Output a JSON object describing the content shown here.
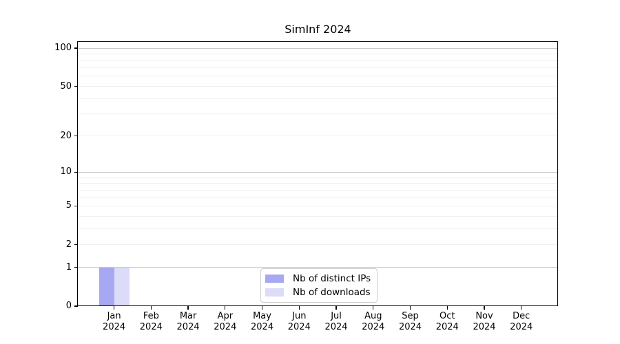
{
  "chart_data": {
    "type": "bar",
    "title": "SimInf 2024",
    "categories": [
      "Jan",
      "Feb",
      "Mar",
      "Apr",
      "May",
      "Jun",
      "Jul",
      "Aug",
      "Sep",
      "Oct",
      "Nov",
      "Dec"
    ],
    "category_year": "2024",
    "series": [
      {
        "name": "Nb of distinct IPs",
        "color": "#a8a8f2",
        "values": [
          1,
          0,
          0,
          0,
          0,
          0,
          0,
          0,
          0,
          0,
          0,
          0
        ]
      },
      {
        "name": "Nb of downloads",
        "color": "#dcdcf8",
        "values": [
          1,
          0,
          0,
          0,
          0,
          0,
          0,
          0,
          0,
          0,
          0,
          0
        ]
      }
    ],
    "y_axis": {
      "scale": "log1p",
      "tick_labels": [
        "0",
        "1",
        "2",
        "5",
        "10",
        "20",
        "50",
        "100"
      ],
      "tick_values": [
        0,
        1,
        2,
        5,
        10,
        20,
        50,
        100
      ],
      "minor_gridlines": [
        2,
        3,
        4,
        5,
        6,
        7,
        8,
        9,
        20,
        30,
        40,
        50,
        60,
        70,
        80,
        90
      ],
      "major_gridlines": [
        1,
        10,
        100
      ],
      "range": [
        0,
        100
      ]
    },
    "x_axis": {
      "label": ""
    },
    "legend": {
      "position": "lower-center"
    },
    "grid": true,
    "colors": {
      "major_grid": "#c9c9c9",
      "minor_grid": "#f0f0f0",
      "spine": "#000000",
      "background": "#ffffff"
    }
  }
}
